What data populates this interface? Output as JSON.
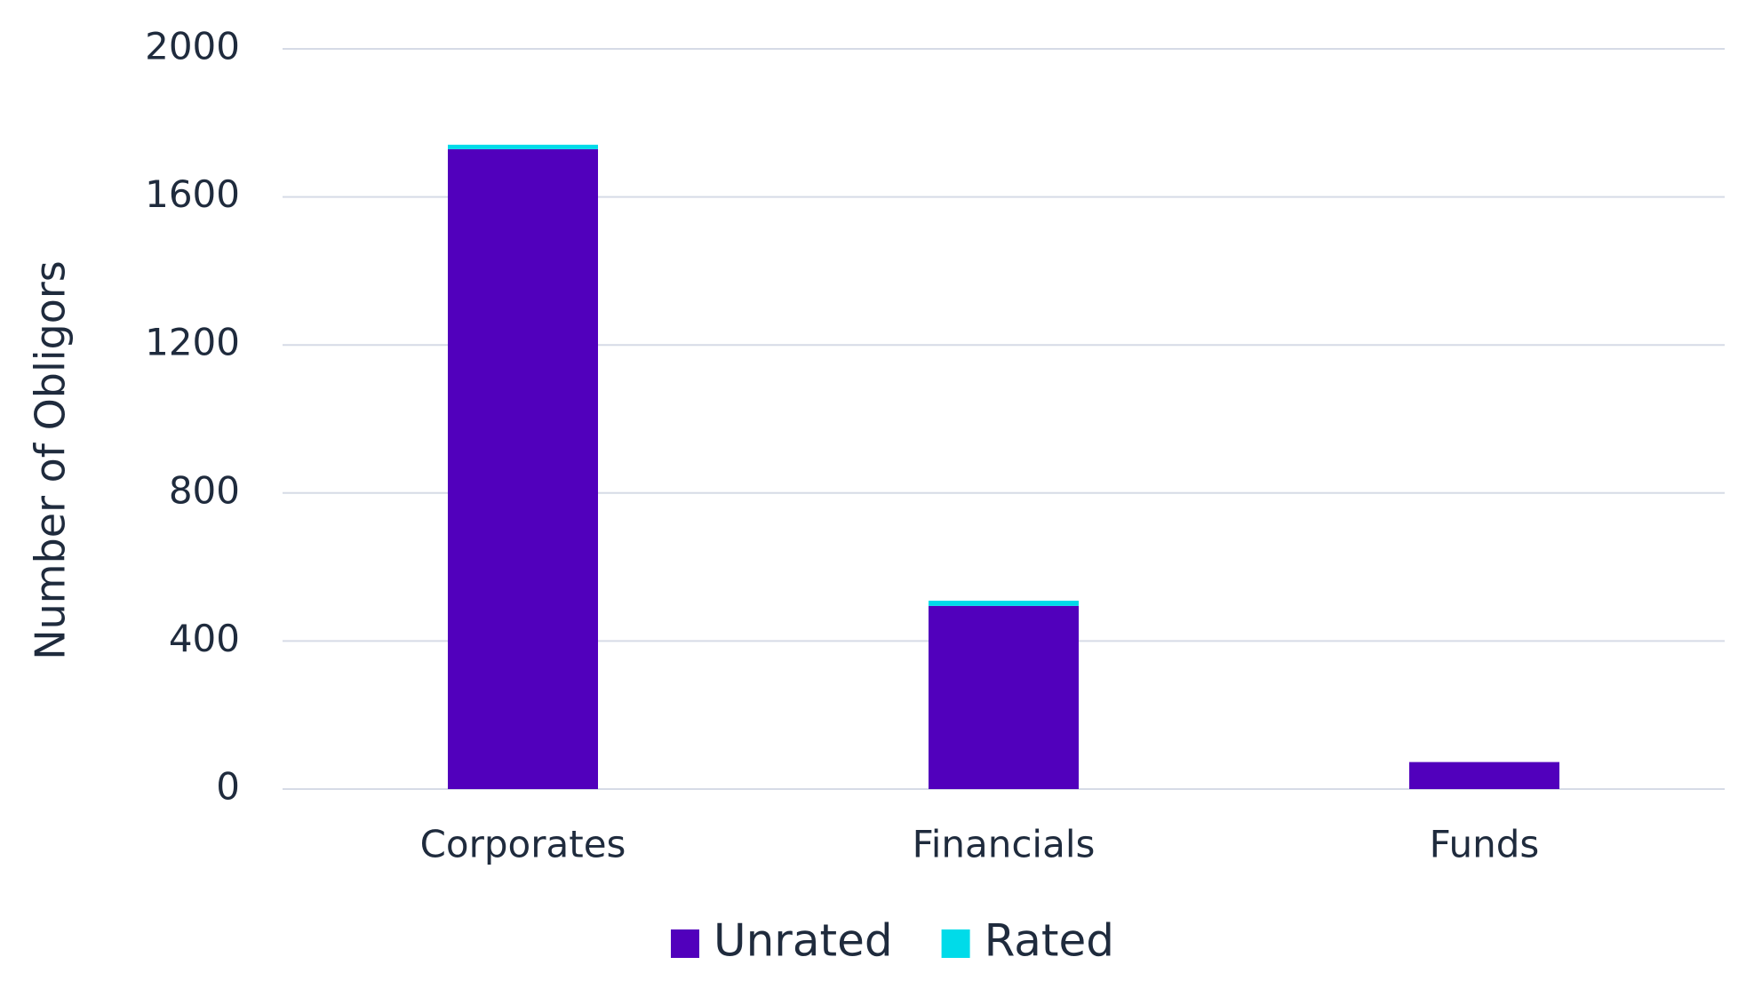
{
  "chart_data": {
    "type": "stacked_bar",
    "y_label": "Number of Obligors",
    "categories": [
      "Corporates",
      "Financials",
      "Funds"
    ],
    "series": [
      {
        "name": "Unrated",
        "color": "#5100bc",
        "values": [
          1729,
          495,
          73
        ]
      },
      {
        "name": "Rated",
        "color": "#00dbe9",
        "values": [
          12,
          14,
          0
        ]
      }
    ],
    "ylim": [
      0,
      2000
    ],
    "yticks": [
      0,
      400,
      800,
      1200,
      1600,
      2000
    ],
    "grid": true,
    "legend": "bottom"
  }
}
